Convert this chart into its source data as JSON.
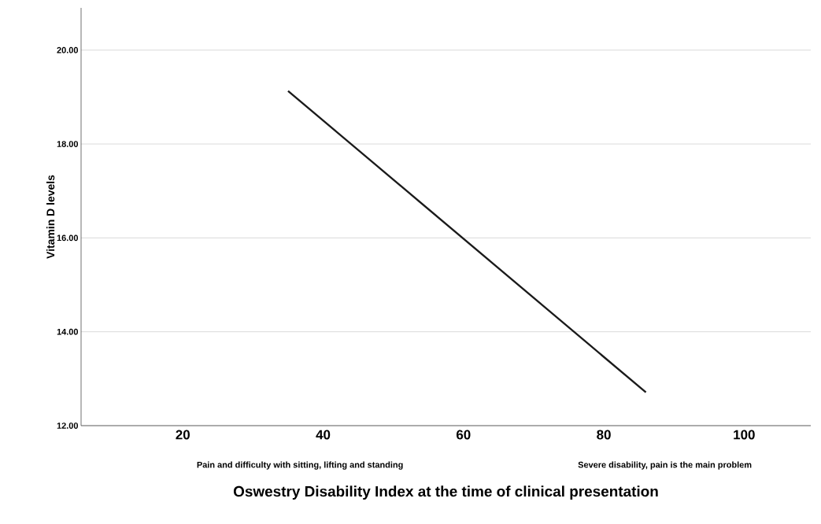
{
  "chart_data": {
    "type": "line",
    "xlabel": "Oswestry Disability Index at the time of clinical presentation",
    "ylabel": "Vitamin D levels",
    "annotations": [
      "Pain and difficulty with sitting, lifting and standing",
      "Severe disability, pain is the main problem"
    ],
    "x": [
      35,
      86
    ],
    "series": [
      {
        "color": "#1a1a1a",
        "values": [
          19.13,
          12.71
        ]
      }
    ],
    "xlim": [
      5.5,
      109.5
    ],
    "xticks": [
      20,
      40,
      60,
      80,
      100
    ],
    "ylim": [
      12,
      20.9
    ],
    "yticks": [
      {
        "value": 12,
        "label": "12.00"
      },
      {
        "value": 14,
        "label": "14.00"
      },
      {
        "value": 16,
        "label": "16.00"
      },
      {
        "value": 18,
        "label": "18.00"
      },
      {
        "value": 20,
        "label": "20.00"
      }
    ],
    "grid": "y",
    "marker": "none",
    "line_style": "solid"
  }
}
